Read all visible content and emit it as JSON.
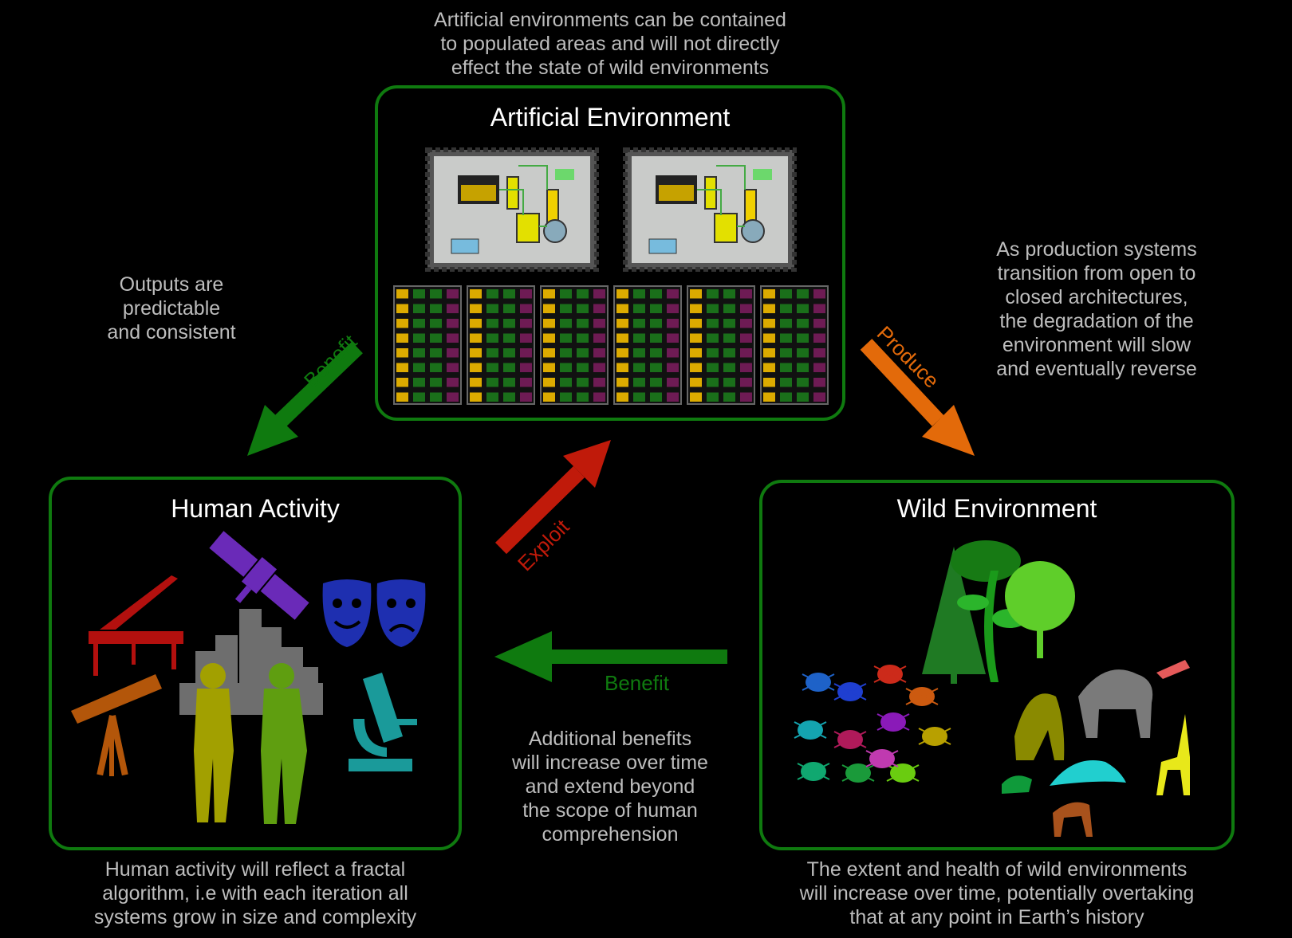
{
  "notes": {
    "top": "Artificial environments can be contained\nto populated areas and will not directly\neffect the state of wild environments",
    "left": "Outputs are\npredictable\nand consistent",
    "right": "As production systems\ntransition from open to\nclosed architectures,\nthe degradation of the\nenvironment will slow\nand eventually reverse",
    "center_bottom": "Additional benefits\nwill increase over time\nand extend beyond\nthe scope of human\ncomprehension",
    "bottom_left": "Human activity will reflect a fractal\nalgorithm, i.e with each iteration all\nsystems grow in size and complexity",
    "bottom_right": "The extent and health of wild environments\nwill increase over time, potentially overtaking\nthat at any point in Earth’s history"
  },
  "boxes": {
    "artificial": {
      "title": "Artificial Environment"
    },
    "human": {
      "title": "Human Activity"
    },
    "wild": {
      "title": "Wild Environment"
    }
  },
  "arrows": {
    "benefit_left": "Benefit",
    "produce": "Produce",
    "exploit": "Exploit",
    "benefit_bottom": "Benefit"
  },
  "colors": {
    "box_border": "#0f7a0f",
    "benefit": "#0f7a0f",
    "produce": "#e36a0a",
    "exploit": "#c01a0a",
    "note_text": "#bdbdbd"
  },
  "icons": {
    "artificial": [
      "reactor-diagram-icon",
      "reactor-diagram-icon",
      "vertical-farm-grid-icon"
    ],
    "human": [
      "piano-icon",
      "satellite-icon",
      "theatre-masks-icon",
      "telescope-icon",
      "city-skyline-icon",
      "worker-icon",
      "microscope-icon"
    ],
    "wild": [
      "trees-icon",
      "insects-icon",
      "animals-icon"
    ]
  }
}
